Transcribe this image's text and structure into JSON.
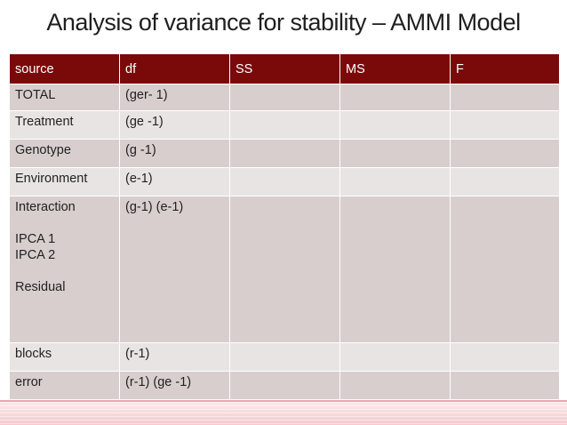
{
  "title": "Analysis of variance for stability – AMMI Model",
  "table": {
    "headers": [
      "source",
      "df",
      "SS",
      "MS",
      "F"
    ],
    "rows": [
      {
        "source": "TOTAL",
        "df": "(ger- 1)"
      },
      {
        "source": "Treatment",
        "df": "(ge -1)"
      },
      {
        "source": "Genotype",
        "df": "(g -1)"
      },
      {
        "source": "Environment",
        "df": "(e-1)"
      },
      {
        "source": "Interaction",
        "sub": [
          "IPCA 1",
          "IPCA 2",
          "Residual"
        ],
        "df": "(g-1) (e-1)"
      },
      {
        "source": "blocks",
        "df": "(r-1)"
      },
      {
        "source": "error",
        "df": "(r-1) (ge -1)"
      }
    ]
  },
  "colors": {
    "header_bg": "#7a0a0a",
    "row_dark": "#d8cece",
    "row_light": "#e9e4e4"
  }
}
